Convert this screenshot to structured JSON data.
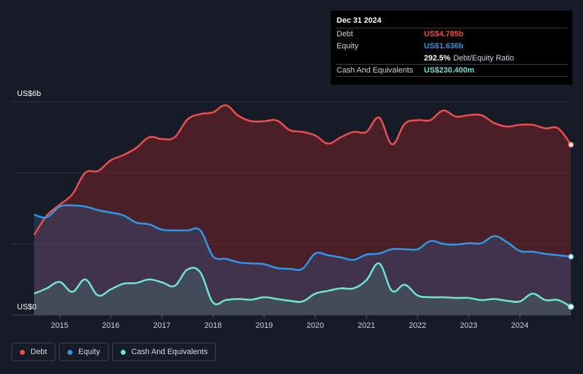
{
  "tooltip": {
    "date": "Dec 31 2024",
    "rows": [
      {
        "label": "Debt",
        "value": "US$4.785b",
        "color": "#e94d4d"
      },
      {
        "label": "Equity",
        "value": "US$1.636b",
        "color": "#2f96e6"
      },
      {
        "label": "",
        "value": "292.5%",
        "suffix": "Debt/Equity Ratio",
        "color": "#ffffff"
      },
      {
        "label": "Cash And Equivalents",
        "value": "US$230.400m",
        "color": "#6ee3cf"
      }
    ]
  },
  "legend": [
    {
      "label": "Debt",
      "color": "#e94d4d"
    },
    {
      "label": "Equity",
      "color": "#2f96e6"
    },
    {
      "label": "Cash And Equivalents",
      "color": "#6ee3cf"
    }
  ],
  "chart_data": {
    "type": "area",
    "ylabel_top": "US$6b",
    "ylabel_bottom": "US$0",
    "ylim": [
      0,
      6
    ],
    "xlim": [
      2014.5,
      2025.0
    ],
    "x_ticks": [
      "2015",
      "2016",
      "2017",
      "2018",
      "2019",
      "2020",
      "2021",
      "2022",
      "2023",
      "2024"
    ],
    "grid": true,
    "series": [
      {
        "name": "Debt",
        "color": "#e94d4d",
        "points": [
          [
            2014.5,
            2.25
          ],
          [
            2014.75,
            2.8
          ],
          [
            2015.0,
            3.1
          ],
          [
            2015.25,
            3.4
          ],
          [
            2015.5,
            4.0
          ],
          [
            2015.75,
            4.05
          ],
          [
            2016.0,
            4.35
          ],
          [
            2016.25,
            4.5
          ],
          [
            2016.5,
            4.7
          ],
          [
            2016.75,
            5.0
          ],
          [
            2017.0,
            4.95
          ],
          [
            2017.25,
            5.0
          ],
          [
            2017.5,
            5.5
          ],
          [
            2017.75,
            5.65
          ],
          [
            2018.0,
            5.7
          ],
          [
            2018.25,
            5.9
          ],
          [
            2018.5,
            5.6
          ],
          [
            2018.75,
            5.45
          ],
          [
            2019.0,
            5.45
          ],
          [
            2019.25,
            5.47
          ],
          [
            2019.5,
            5.2
          ],
          [
            2019.75,
            5.15
          ],
          [
            2020.0,
            5.05
          ],
          [
            2020.25,
            4.82
          ],
          [
            2020.5,
            5.0
          ],
          [
            2020.75,
            5.15
          ],
          [
            2021.0,
            5.15
          ],
          [
            2021.25,
            5.55
          ],
          [
            2021.5,
            4.8
          ],
          [
            2021.75,
            5.38
          ],
          [
            2022.0,
            5.48
          ],
          [
            2022.25,
            5.48
          ],
          [
            2022.5,
            5.75
          ],
          [
            2022.75,
            5.58
          ],
          [
            2023.0,
            5.62
          ],
          [
            2023.25,
            5.62
          ],
          [
            2023.5,
            5.4
          ],
          [
            2023.75,
            5.3
          ],
          [
            2024.0,
            5.35
          ],
          [
            2024.25,
            5.35
          ],
          [
            2024.5,
            5.25
          ],
          [
            2024.75,
            5.25
          ],
          [
            2025.0,
            4.79
          ]
        ]
      },
      {
        "name": "Equity",
        "color": "#2f96e6",
        "points": [
          [
            2014.5,
            2.82
          ],
          [
            2014.75,
            2.75
          ],
          [
            2015.0,
            3.05
          ],
          [
            2015.25,
            3.08
          ],
          [
            2015.5,
            3.05
          ],
          [
            2015.75,
            2.95
          ],
          [
            2016.0,
            2.88
          ],
          [
            2016.25,
            2.8
          ],
          [
            2016.5,
            2.6
          ],
          [
            2016.75,
            2.55
          ],
          [
            2017.0,
            2.4
          ],
          [
            2017.25,
            2.38
          ],
          [
            2017.5,
            2.38
          ],
          [
            2017.75,
            2.38
          ],
          [
            2018.0,
            1.65
          ],
          [
            2018.25,
            1.58
          ],
          [
            2018.5,
            1.48
          ],
          [
            2018.75,
            1.45
          ],
          [
            2019.0,
            1.43
          ],
          [
            2019.25,
            1.32
          ],
          [
            2019.5,
            1.3
          ],
          [
            2019.75,
            1.3
          ],
          [
            2020.0,
            1.73
          ],
          [
            2020.25,
            1.68
          ],
          [
            2020.5,
            1.62
          ],
          [
            2020.75,
            1.55
          ],
          [
            2021.0,
            1.7
          ],
          [
            2021.25,
            1.73
          ],
          [
            2021.5,
            1.85
          ],
          [
            2021.75,
            1.85
          ],
          [
            2022.0,
            1.85
          ],
          [
            2022.25,
            2.08
          ],
          [
            2022.5,
            2.0
          ],
          [
            2022.75,
            1.98
          ],
          [
            2023.0,
            2.02
          ],
          [
            2023.25,
            2.02
          ],
          [
            2023.5,
            2.22
          ],
          [
            2023.75,
            2.05
          ],
          [
            2024.0,
            1.8
          ],
          [
            2024.25,
            1.78
          ],
          [
            2024.5,
            1.72
          ],
          [
            2024.75,
            1.68
          ],
          [
            2025.0,
            1.64
          ]
        ]
      },
      {
        "name": "Cash And Equivalents",
        "color": "#6ee3cf",
        "points": [
          [
            2014.5,
            0.6
          ],
          [
            2014.75,
            0.75
          ],
          [
            2015.0,
            0.93
          ],
          [
            2015.25,
            0.65
          ],
          [
            2015.5,
            1.0
          ],
          [
            2015.75,
            0.55
          ],
          [
            2016.0,
            0.72
          ],
          [
            2016.25,
            0.88
          ],
          [
            2016.5,
            0.9
          ],
          [
            2016.75,
            1.0
          ],
          [
            2017.0,
            0.92
          ],
          [
            2017.25,
            0.82
          ],
          [
            2017.5,
            1.28
          ],
          [
            2017.75,
            1.2
          ],
          [
            2018.0,
            0.35
          ],
          [
            2018.25,
            0.42
          ],
          [
            2018.5,
            0.45
          ],
          [
            2018.75,
            0.43
          ],
          [
            2019.0,
            0.5
          ],
          [
            2019.25,
            0.45
          ],
          [
            2019.5,
            0.4
          ],
          [
            2019.75,
            0.38
          ],
          [
            2020.0,
            0.6
          ],
          [
            2020.25,
            0.68
          ],
          [
            2020.5,
            0.75
          ],
          [
            2020.75,
            0.75
          ],
          [
            2021.0,
            0.98
          ],
          [
            2021.25,
            1.45
          ],
          [
            2021.5,
            0.68
          ],
          [
            2021.75,
            0.85
          ],
          [
            2022.0,
            0.55
          ],
          [
            2022.25,
            0.5
          ],
          [
            2022.5,
            0.5
          ],
          [
            2022.75,
            0.48
          ],
          [
            2023.0,
            0.48
          ],
          [
            2023.25,
            0.42
          ],
          [
            2023.5,
            0.45
          ],
          [
            2023.75,
            0.4
          ],
          [
            2024.0,
            0.38
          ],
          [
            2024.25,
            0.6
          ],
          [
            2024.5,
            0.42
          ],
          [
            2024.75,
            0.42
          ],
          [
            2025.0,
            0.23
          ]
        ]
      }
    ]
  }
}
